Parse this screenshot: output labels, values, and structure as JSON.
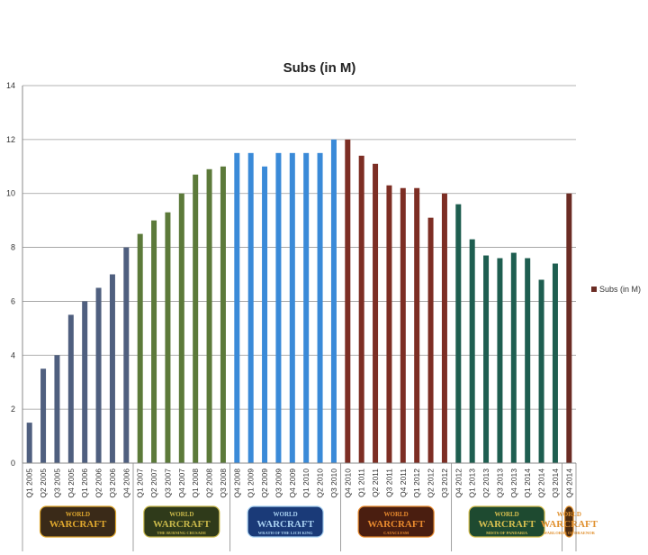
{
  "chart_data": {
    "type": "bar",
    "title": "Subs (in M)",
    "xlabel": "",
    "ylabel": "",
    "ylim": [
      0,
      14
    ],
    "yticks": [
      "0",
      "2",
      "4",
      "6",
      "8",
      "10",
      "12",
      "14"
    ],
    "grid": true,
    "legend": {
      "label": "Subs (in M)",
      "placement": "right",
      "color": "#6b2c24"
    },
    "categories": [
      "Q1 2005",
      "Q2 2005",
      "Q3 2005",
      "Q4 2005",
      "Q1 2006",
      "Q2 2006",
      "Q3 2006",
      "Q4 2006",
      "Q1 2007",
      "Q2 2007",
      "Q3 2007",
      "Q4 2007",
      "Q1 2008",
      "Q2 2008",
      "Q3 2008",
      "Q4 2008",
      "Q1 2009",
      "Q2 2009",
      "Q3 2009",
      "Q4 2009",
      "Q1 2010",
      "Q2 2010",
      "Q3 2010",
      "Q4 2010",
      "Q1 2011",
      "Q2 2011",
      "Q3 2011",
      "Q4 2011",
      "Q1 2012",
      "Q2 2012",
      "Q3 2012",
      "Q4 2012",
      "Q1 2013",
      "Q2 2013",
      "Q3 2013",
      "Q4 2013",
      "Q1 2014",
      "Q2 2014",
      "Q3 2014",
      "Q4 2014"
    ],
    "values": [
      1.5,
      3.5,
      4.0,
      5.5,
      6.0,
      6.5,
      7.0,
      8.0,
      8.5,
      9.0,
      9.3,
      10.0,
      10.7,
      10.9,
      11.0,
      11.5,
      11.5,
      11.0,
      11.5,
      11.5,
      11.5,
      11.5,
      12.0,
      12.0,
      11.4,
      11.1,
      10.3,
      10.2,
      10.2,
      9.1,
      10.0,
      9.6,
      8.3,
      7.7,
      7.6,
      7.8,
      7.6,
      6.8,
      7.4,
      10.0
    ],
    "eras": [
      {
        "start": 0,
        "end": 7,
        "color": "#4f5f7f",
        "logo_line1": "WORLD",
        "logo_line2": "WARCRAFT",
        "logo_sub": "",
        "logo_bg": "#3a2a18",
        "logo_fg": "#e0a82e"
      },
      {
        "start": 8,
        "end": 14,
        "color": "#5c7a3a",
        "logo_line1": "WORLD",
        "logo_line2": "WARCRAFT",
        "logo_sub": "THE BURNING CRUSADE",
        "logo_bg": "#2f3a1a",
        "logo_fg": "#c8b84a"
      },
      {
        "start": 15,
        "end": 22,
        "color": "#3a8ad8",
        "logo_line1": "WORLD",
        "logo_line2": "WARCRAFT",
        "logo_sub": "WRATH OF THE LICH KING",
        "logo_bg": "#1a3a78",
        "logo_fg": "#a8d0f0"
      },
      {
        "start": 23,
        "end": 30,
        "color": "#7d2e24",
        "logo_line1": "WORLD",
        "logo_line2": "WARCRAFT",
        "logo_sub": "CATACLYSM",
        "logo_bg": "#4a1e10",
        "logo_fg": "#e88a2e"
      },
      {
        "start": 31,
        "end": 38,
        "color": "#1e5e50",
        "logo_line1": "WORLD",
        "logo_line2": "WARCRAFT",
        "logo_sub": "MISTS OF PANDARIA",
        "logo_bg": "#1e4a30",
        "logo_fg": "#d8c050"
      },
      {
        "start": 39,
        "end": 39,
        "color": "#6b2c24",
        "logo_line1": "WORLD",
        "logo_line2": "WARCRAFT",
        "logo_sub": "WARLORDS OF DRAENOR",
        "logo_bg": "#4a2a10",
        "logo_fg": "#e0902e"
      }
    ]
  }
}
